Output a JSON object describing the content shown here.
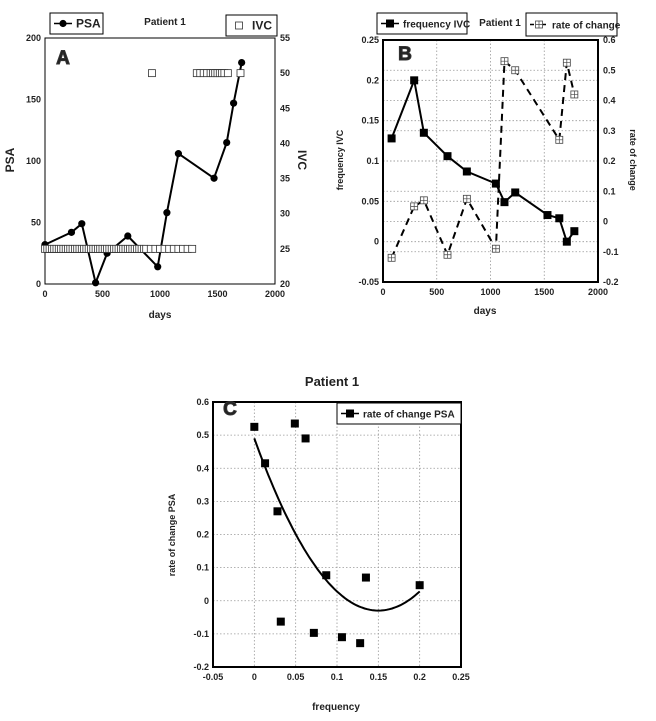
{
  "chart_data": [
    {
      "id": "A",
      "type": "line",
      "panel_letter": "A",
      "title": "Patient 1",
      "xlabel": "days",
      "ylabel": "PSA",
      "y2label": "IVC",
      "xlim": [
        0,
        2000
      ],
      "xticks": [
        0,
        500,
        1000,
        1500,
        2000
      ],
      "ylim": [
        0,
        200
      ],
      "yticks": [
        0,
        50,
        100,
        150,
        200
      ],
      "y2lim": [
        20,
        55
      ],
      "y2ticks": [
        20,
        25,
        30,
        35,
        40,
        45,
        50,
        55
      ],
      "grid": false,
      "series": [
        {
          "name": "PSA",
          "axis": "left",
          "style": "line-circle",
          "x": [
            0,
            230,
            320,
            440,
            540,
            720,
            980,
            1060,
            1160,
            1470,
            1580,
            1640,
            1710
          ],
          "y": [
            32,
            42,
            49,
            1,
            25,
            39,
            14,
            58,
            106,
            86,
            115,
            147,
            180
          ]
        },
        {
          "name": "IVC",
          "axis": "right",
          "style": "open-square",
          "x": [
            0,
            20,
            40,
            60,
            80,
            100,
            120,
            140,
            160,
            180,
            200,
            220,
            240,
            260,
            280,
            300,
            320,
            340,
            360,
            380,
            400,
            420,
            440,
            460,
            480,
            500,
            520,
            540,
            560,
            580,
            600,
            620,
            640,
            660,
            680,
            700,
            720,
            740,
            760,
            780,
            800,
            820,
            840,
            860,
            880,
            920,
            960,
            1000,
            1040,
            1080,
            1120,
            1160,
            1200,
            1240,
            1280,
            930,
            1320,
            1350,
            1380,
            1410,
            1440,
            1460,
            1480,
            1500,
            1520,
            1540,
            1560,
            1590,
            1700
          ],
          "y": [
            25,
            25,
            25,
            25,
            25,
            25,
            25,
            25,
            25,
            25,
            25,
            25,
            25,
            25,
            25,
            25,
            25,
            25,
            25,
            25,
            25,
            25,
            25,
            25,
            25,
            25,
            25,
            25,
            25,
            25,
            25,
            25,
            25,
            25,
            25,
            25,
            25,
            25,
            25,
            25,
            25,
            25,
            25,
            25,
            25,
            25,
            25,
            25,
            25,
            25,
            25,
            25,
            25,
            25,
            25,
            50,
            50,
            50,
            50,
            50,
            50,
            50,
            50,
            50,
            50,
            50,
            50,
            50,
            50
          ]
        }
      ]
    },
    {
      "id": "B",
      "type": "line",
      "panel_letter": "B",
      "title": "Patient 1",
      "xlabel": "days",
      "ylabel": "frequency IVC",
      "y2label": "rate of change",
      "xlim": [
        0,
        2000
      ],
      "xticks": [
        0,
        500,
        1000,
        1500,
        2000
      ],
      "ylim": [
        -0.05,
        0.25
      ],
      "yticks": [
        -0.05,
        0,
        0.05,
        0.1,
        0.15,
        0.2,
        0.25
      ],
      "y2lim": [
        -0.2,
        0.6
      ],
      "y2ticks": [
        -0.2,
        -0.1,
        0,
        0.1,
        0.2,
        0.3,
        0.4,
        0.5,
        0.6
      ],
      "grid": true,
      "series": [
        {
          "name": "frequency IVC",
          "axis": "left",
          "style": "line-square",
          "x": [
            80,
            290,
            380,
            600,
            780,
            1050,
            1130,
            1230,
            1530,
            1640,
            1710,
            1780
          ],
          "y": [
            0.128,
            0.2,
            0.135,
            0.106,
            0.087,
            0.072,
            0.049,
            0.061,
            0.033,
            0.029,
            0,
            0.013
          ]
        },
        {
          "name": "rate of change",
          "axis": "right",
          "style": "dashed-crossed-square",
          "x": [
            80,
            290,
            380,
            600,
            780,
            1050,
            1130,
            1230,
            1640,
            1710,
            1780
          ],
          "y": [
            -0.12,
            0.05,
            0.07,
            -0.11,
            0.075,
            -0.09,
            0.53,
            0.5,
            0.27,
            0.525,
            0.42
          ]
        }
      ]
    },
    {
      "id": "C",
      "type": "scatter",
      "panel_letter": "C",
      "title": "Patient 1",
      "xlabel": "frequency",
      "ylabel": "rate of change PSA",
      "xlim": [
        -0.05,
        0.25
      ],
      "xticks": [
        -0.05,
        0,
        0.05,
        0.1,
        0.15,
        0.2,
        0.25
      ],
      "ylim": [
        -0.2,
        0.6
      ],
      "yticks": [
        -0.2,
        -0.1,
        0,
        0.1,
        0.2,
        0.3,
        0.4,
        0.5,
        0.6
      ],
      "grid": true,
      "legend": "top-right",
      "series": [
        {
          "name": "rate of change PSA",
          "style": "filled-square",
          "x": [
            0,
            0.013,
            0.028,
            0.049,
            0.062,
            0.032,
            0.072,
            0.087,
            0.106,
            0.128,
            0.135,
            0.2
          ],
          "y": [
            0.525,
            0.415,
            0.27,
            0.535,
            0.49,
            -0.063,
            -0.097,
            0.077,
            -0.11,
            -0.128,
            0.07,
            0.047
          ]
        }
      ],
      "fit": {
        "type": "quadratic",
        "coefficients": [
          0.49,
          -6.93,
          23.1
        ],
        "x_range": [
          0,
          0.2
        ]
      }
    }
  ]
}
